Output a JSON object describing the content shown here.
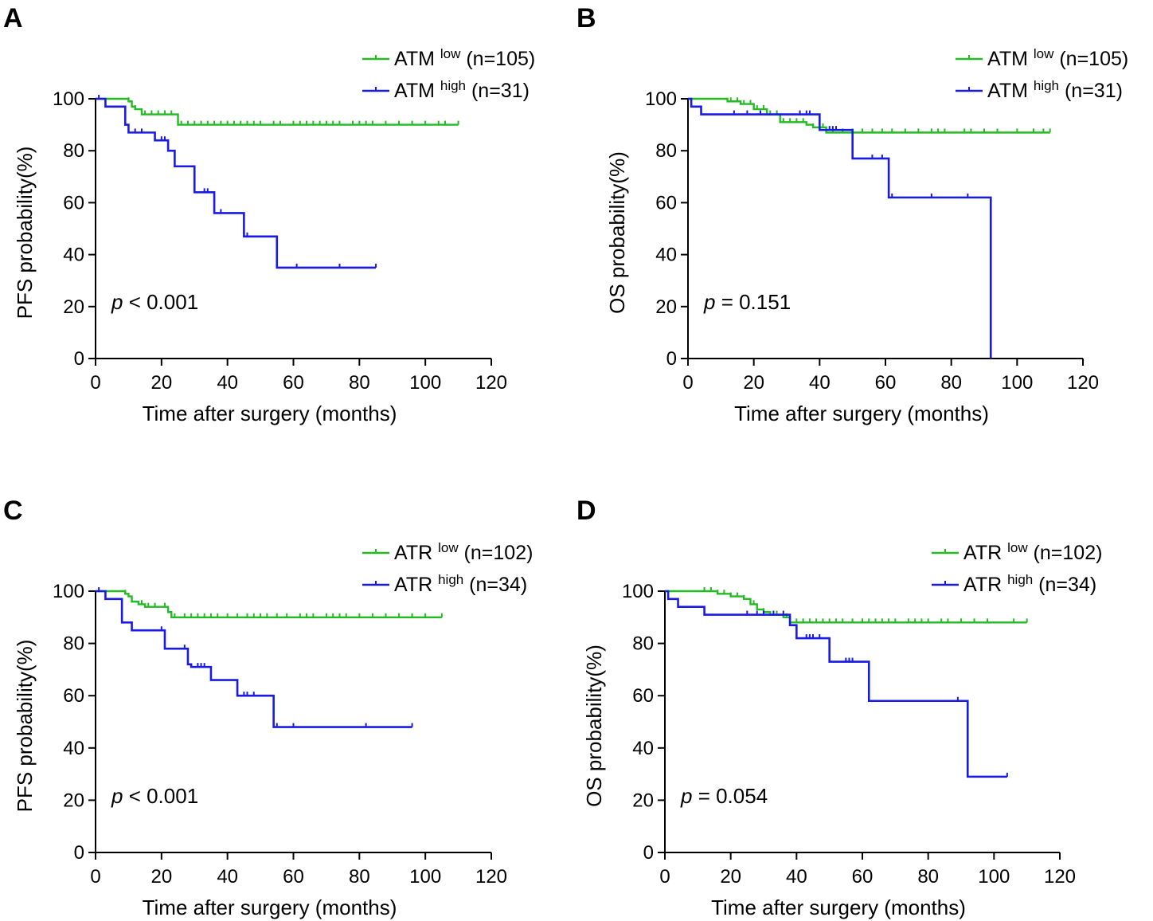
{
  "figure": {
    "panels": [
      "A",
      "B",
      "C",
      "D"
    ],
    "curve_colors": {
      "low": "#22bb22",
      "high": "#1a1ae6"
    }
  },
  "chart_data": [
    {
      "id": "A",
      "type": "line",
      "subtype": "kaplan-meier",
      "panel_label": "A",
      "xlabel": "Time after surgery (months)",
      "ylabel": "PFS probability(%)",
      "xlim": [
        0,
        120
      ],
      "ylim": [
        0,
        100
      ],
      "xticks": [
        0,
        20,
        40,
        60,
        80,
        100,
        120
      ],
      "yticks": [
        0,
        20,
        40,
        60,
        80,
        100
      ],
      "p_prefix": "p",
      "p_text": "< 0.001",
      "series": [
        {
          "name": "ATM low (n=105)",
          "group": "low",
          "label_main": "ATM",
          "label_sup": "low",
          "label_n": "(n=105)",
          "x": [
            0,
            10,
            11,
            12,
            14,
            25,
            110
          ],
          "y": [
            100,
            99,
            97,
            96,
            94,
            90,
            90
          ],
          "censor": [
            10,
            12,
            15,
            17,
            19,
            21,
            23,
            26,
            28,
            30,
            32,
            34,
            36,
            38,
            40,
            42,
            44,
            46,
            48,
            50,
            54,
            56,
            60,
            62,
            64,
            66,
            68,
            70,
            72,
            74,
            78,
            80,
            82,
            84,
            88,
            92,
            96,
            100,
            104,
            106,
            110
          ]
        },
        {
          "name": "ATM high (n=31)",
          "group": "high",
          "label_main": "ATM",
          "label_sup": "high",
          "label_n": "(n=31)",
          "x": [
            0,
            1,
            3,
            9,
            10,
            18,
            22,
            24,
            30,
            36,
            45,
            55,
            85
          ],
          "y": [
            100,
            100,
            97,
            90,
            87,
            84,
            80,
            74,
            64,
            56,
            47,
            35,
            35
          ],
          "censor": [
            1,
            12,
            14,
            20,
            21,
            33,
            34,
            38,
            46,
            61,
            74,
            85
          ]
        },
        {
          "name": "p < 0.001",
          "group": "stat",
          "x": [],
          "y": []
        }
      ]
    },
    {
      "id": "B",
      "type": "line",
      "subtype": "kaplan-meier",
      "panel_label": "B",
      "xlabel": "Time after surgery (months)",
      "ylabel": "OS probability(%)",
      "xlim": [
        0,
        120
      ],
      "ylim": [
        0,
        100
      ],
      "xticks": [
        0,
        20,
        40,
        60,
        80,
        100,
        120
      ],
      "yticks": [
        0,
        20,
        40,
        60,
        80,
        100
      ],
      "p_prefix": "p",
      "p_text": "= 0.151",
      "series": [
        {
          "name": "ATM low (n=105)",
          "group": "low",
          "label_main": "ATM",
          "label_sup": "low",
          "label_n": "(n=105)",
          "x": [
            0,
            12,
            16,
            20,
            24,
            28,
            36,
            38,
            42,
            110
          ],
          "y": [
            100,
            99,
            98,
            96,
            94,
            91,
            90,
            89,
            87,
            87
          ],
          "censor": [
            13,
            15,
            17,
            19,
            21,
            23,
            25,
            27,
            29,
            31,
            33,
            35,
            38,
            41,
            44,
            47,
            50,
            53,
            56,
            59,
            62,
            66,
            70,
            74,
            76,
            78,
            84,
            86,
            90,
            94,
            100,
            105,
            108,
            110
          ]
        },
        {
          "name": "ATM high (n=31)",
          "group": "high",
          "label_main": "ATM",
          "label_sup": "high",
          "label_n": "(n=31)",
          "x": [
            0,
            1,
            4,
            26,
            40,
            50,
            61,
            92,
            92
          ],
          "y": [
            100,
            97,
            94,
            94,
            88,
            77,
            62,
            62,
            0
          ],
          "censor": [
            1,
            14,
            18,
            22,
            34,
            36,
            37,
            43,
            44,
            45,
            56,
            59,
            62,
            74,
            85
          ]
        },
        {
          "name": "p = 0.151",
          "group": "stat",
          "x": [],
          "y": []
        }
      ]
    },
    {
      "id": "C",
      "type": "line",
      "subtype": "kaplan-meier",
      "panel_label": "C",
      "xlabel": "Time after surgery (months)",
      "ylabel": "PFS probability(%)",
      "xlim": [
        0,
        120
      ],
      "ylim": [
        0,
        100
      ],
      "xticks": [
        0,
        20,
        40,
        60,
        80,
        100,
        120
      ],
      "yticks": [
        0,
        20,
        40,
        60,
        80,
        100
      ],
      "p_prefix": "p",
      "p_text": "< 0.001",
      "series": [
        {
          "name": "ATR low (n=102)",
          "group": "low",
          "label_main": "ATR",
          "label_sup": "low",
          "label_n": "(n=102)",
          "x": [
            0,
            9,
            10,
            11,
            13,
            15,
            22,
            23,
            105
          ],
          "y": [
            100,
            99,
            98,
            96,
            95,
            94,
            92,
            90,
            90
          ],
          "censor": [
            9,
            11,
            14,
            16,
            18,
            21,
            24,
            27,
            29,
            31,
            33,
            35,
            37,
            40,
            43,
            46,
            48,
            50,
            52,
            55,
            58,
            62,
            64,
            66,
            70,
            72,
            74,
            76,
            80,
            84,
            88,
            92,
            96,
            100,
            105
          ]
        },
        {
          "name": "ATR high (n=34)",
          "group": "high",
          "label_main": "ATR",
          "label_sup": "high",
          "label_n": "(n=34)",
          "x": [
            0,
            3,
            8,
            11,
            20,
            21,
            28,
            29,
            35,
            43,
            54,
            96
          ],
          "y": [
            100,
            97,
            88,
            85,
            85,
            78,
            72,
            71,
            66,
            60,
            48,
            48
          ],
          "censor": [
            1,
            20,
            27,
            31,
            32,
            33,
            45,
            46,
            48,
            55,
            60,
            82,
            96
          ]
        },
        {
          "name": "p < 0.001",
          "group": "stat",
          "x": [],
          "y": []
        }
      ]
    },
    {
      "id": "D",
      "type": "line",
      "subtype": "kaplan-meier",
      "panel_label": "D",
      "xlabel": "Time after surgery (months)",
      "ylabel": "OS probability(%)",
      "xlim": [
        0,
        120
      ],
      "ylim": [
        0,
        100
      ],
      "xticks": [
        0,
        20,
        40,
        60,
        80,
        100,
        120
      ],
      "yticks": [
        0,
        20,
        40,
        60,
        80,
        100
      ],
      "p_prefix": "p",
      "p_text": "= 0.054",
      "series": [
        {
          "name": "ATR low (n=102)",
          "group": "low",
          "label_main": "ATR",
          "label_sup": "low",
          "label_n": "(n=102)",
          "x": [
            0,
            16,
            20,
            24,
            26,
            28,
            30,
            32,
            36,
            38,
            110
          ],
          "y": [
            100,
            99,
            98,
            97,
            95,
            93,
            92,
            91,
            90,
            88,
            88
          ],
          "censor": [
            12,
            14,
            16,
            18,
            20,
            22,
            24,
            27,
            30,
            34,
            37,
            40,
            42,
            44,
            46,
            48,
            50,
            52,
            54,
            57,
            60,
            62,
            64,
            66,
            68,
            70,
            74,
            76,
            78,
            80,
            84,
            86,
            90,
            94,
            98,
            106,
            110
          ]
        },
        {
          "name": "ATR high (n=34)",
          "group": "high",
          "label_main": "ATR",
          "label_sup": "high",
          "label_n": "(n=34)",
          "x": [
            0,
            1,
            4,
            12,
            25,
            38,
            40,
            50,
            62,
            92,
            104
          ],
          "y": [
            100,
            97,
            94,
            91,
            91,
            87,
            82,
            73,
            58,
            29,
            29
          ],
          "censor": [
            1,
            25,
            28,
            30,
            33,
            36,
            43,
            44,
            45,
            47,
            55,
            56,
            57,
            89,
            104
          ]
        },
        {
          "name": "p = 0.054",
          "group": "stat",
          "x": [],
          "y": []
        }
      ]
    }
  ]
}
